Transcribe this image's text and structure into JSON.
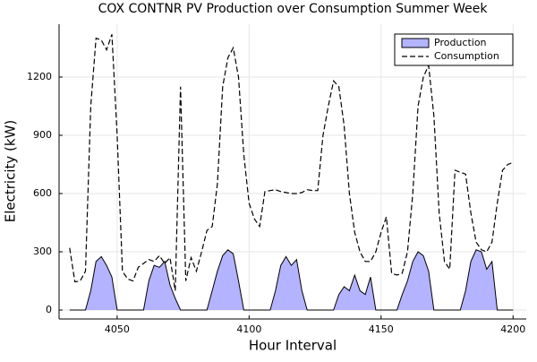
{
  "chart_data": {
    "type": "line",
    "title": "COX CONTNR PV Production over Consumption Summer Week",
    "xlabel": "Hour Interval",
    "ylabel": "Electricity (kW)",
    "xlim": [
      4028,
      4205
    ],
    "ylim": [
      -46,
      1472
    ],
    "xticks": [
      4050,
      4100,
      4150,
      4200
    ],
    "yticks": [
      0,
      300,
      600,
      900,
      1200
    ],
    "grid": true,
    "legend": "top right",
    "x": [
      4032,
      4034,
      4036,
      4038,
      4040,
      4042,
      4044,
      4046,
      4048,
      4050,
      4052,
      4054,
      4056,
      4058,
      4060,
      4062,
      4064,
      4066,
      4068,
      4070,
      4072,
      4074,
      4076,
      4078,
      4080,
      4082,
      4084,
      4086,
      4088,
      4090,
      4092,
      4094,
      4096,
      4098,
      4100,
      4102,
      4104,
      4106,
      4108,
      4110,
      4112,
      4114,
      4116,
      4118,
      4120,
      4122,
      4124,
      4126,
      4128,
      4130,
      4132,
      4134,
      4136,
      4138,
      4140,
      4142,
      4144,
      4146,
      4148,
      4150,
      4152,
      4154,
      4156,
      4158,
      4160,
      4162,
      4164,
      4166,
      4168,
      4170,
      4172,
      4174,
      4176,
      4178,
      4180,
      4182,
      4184,
      4186,
      4188,
      4190,
      4192,
      4194,
      4196,
      4198,
      4200
    ],
    "series": [
      {
        "name": "Production",
        "color": "#b3b3ff",
        "fill": true,
        "dashed": false,
        "values": [
          0,
          0,
          0,
          0,
          100,
          250,
          275,
          230,
          170,
          0,
          0,
          0,
          0,
          0,
          0,
          150,
          230,
          220,
          250,
          130,
          60,
          0,
          0,
          0,
          0,
          0,
          0,
          100,
          200,
          280,
          310,
          290,
          150,
          0,
          0,
          0,
          0,
          0,
          0,
          100,
          230,
          275,
          230,
          260,
          100,
          0,
          0,
          0,
          0,
          0,
          0,
          80,
          120,
          100,
          180,
          100,
          80,
          170,
          0,
          0,
          0,
          0,
          0,
          80,
          150,
          250,
          300,
          280,
          200,
          0,
          0,
          0,
          0,
          0,
          0,
          100,
          250,
          310,
          300,
          210,
          250,
          0,
          0,
          0,
          0
        ]
      },
      {
        "name": "Consumption",
        "color": "#000000",
        "fill": false,
        "dashed": true,
        "values": [
          320,
          145,
          150,
          200,
          1050,
          1400,
          1390,
          1340,
          1420,
          900,
          200,
          160,
          150,
          220,
          240,
          260,
          250,
          280,
          240,
          270,
          100,
          1150,
          150,
          270,
          200,
          300,
          410,
          430,
          650,
          1150,
          1300,
          1350,
          1200,
          800,
          550,
          470,
          430,
          610,
          615,
          620,
          610,
          605,
          600,
          600,
          605,
          620,
          615,
          615,
          900,
          1050,
          1180,
          1150,
          950,
          600,
          400,
          300,
          250,
          250,
          300,
          400,
          480,
          190,
          180,
          190,
          300,
          600,
          1050,
          1200,
          1260,
          1000,
          500,
          250,
          210,
          720,
          710,
          700,
          500,
          350,
          310,
          300,
          350,
          550,
          720,
          750,
          760
        ]
      }
    ]
  }
}
